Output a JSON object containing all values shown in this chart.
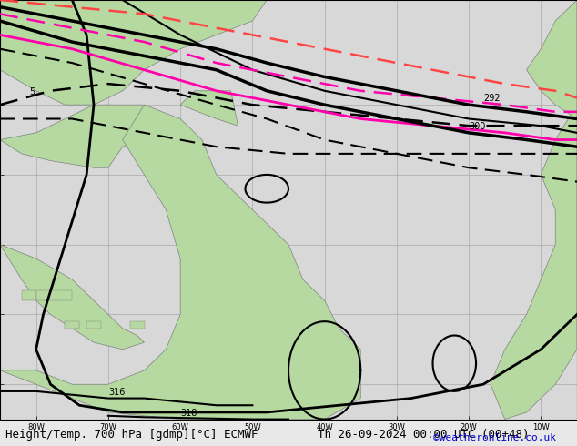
{
  "title_left": "Height/Temp. 700 hPa [gdmp][°C] ECMWF",
  "title_right": "Th 26-09-2024 00:00 UTC (00+48)",
  "credit": "©weatheronline.co.uk",
  "bg_color": "#c8c8c8",
  "land_color": "#b5d9a0",
  "ocean_color": "#d8d8d8",
  "grid_color": "#aaaaaa",
  "contour_black_color": "#000000",
  "contour_pink_color": "#ff00aa",
  "contour_red_color": "#ff4444",
  "bottom_bar_color": "#e8e8e8",
  "title_font_size": 9,
  "credit_font_size": 8,
  "credit_color": "#0000cc",
  "label_292": "292",
  "label_300": "300",
  "label_316": "316",
  "label_318": "318",
  "label_5": "5"
}
